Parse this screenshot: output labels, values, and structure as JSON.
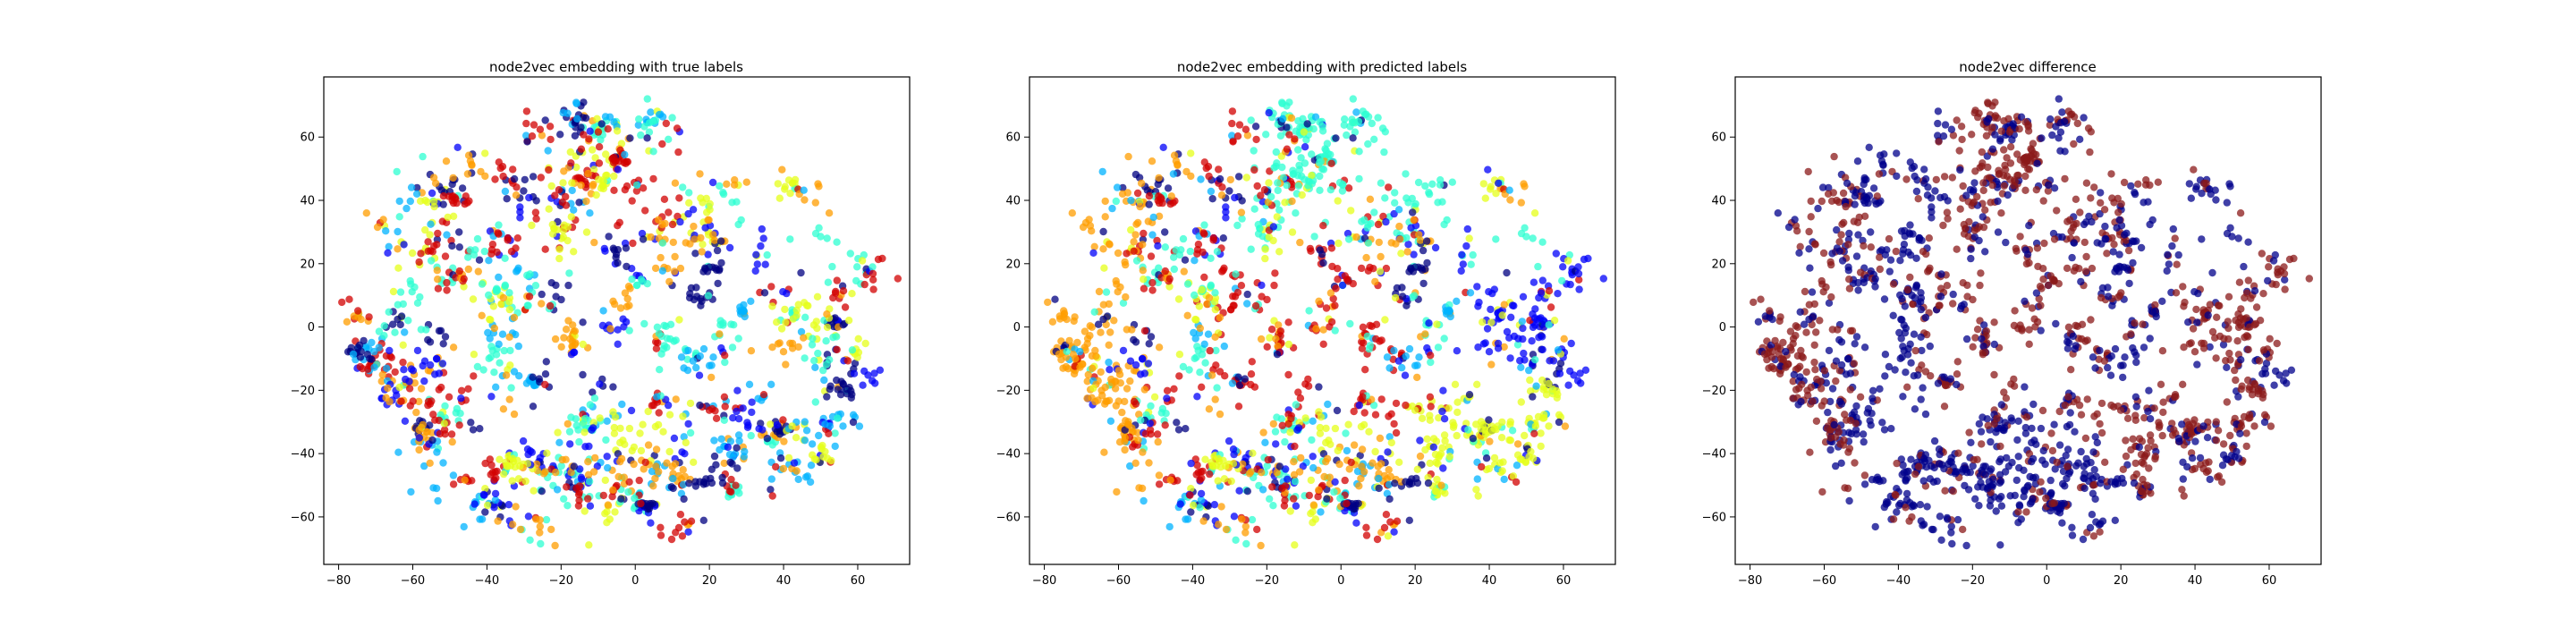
{
  "figure": {
    "background": "#ffffff",
    "axis_color": "#000000"
  },
  "chart_data": [
    {
      "type": "scatter",
      "title": "node2vec embedding with true labels",
      "xlabel": "",
      "ylabel": "",
      "xlim": [
        -84,
        74
      ],
      "ylim": [
        -75,
        79
      ],
      "xticks": [
        -80,
        -60,
        -40,
        -20,
        0,
        20,
        40,
        60
      ],
      "yticks": [
        -60,
        -40,
        -20,
        0,
        20,
        40,
        60
      ],
      "grid": false,
      "legend": "none",
      "colormap": "jet",
      "mode": "mixed",
      "marker_alpha": 0.75,
      "seed": 11
    },
    {
      "type": "scatter",
      "title": "node2vec embedding with predicted labels",
      "xlabel": "",
      "ylabel": "",
      "xlim": [
        -84,
        74
      ],
      "ylim": [
        -75,
        79
      ],
      "xticks": [
        -80,
        -60,
        -40,
        -20,
        0,
        20,
        40,
        60
      ],
      "yticks": [
        -60,
        -40,
        -20,
        0,
        20,
        40,
        60
      ],
      "grid": false,
      "legend": "none",
      "colormap": "jet",
      "mode": "clustered",
      "marker_alpha": 0.75,
      "seed": 11
    },
    {
      "type": "scatter",
      "title": "node2vec difference",
      "xlabel": "",
      "ylabel": "",
      "xlim": [
        -84,
        74
      ],
      "ylim": [
        -75,
        79
      ],
      "xticks": [
        -80,
        -60,
        -40,
        -20,
        0,
        20,
        40,
        60
      ],
      "yticks": [
        -60,
        -40,
        -20,
        0,
        20,
        40,
        60
      ],
      "grid": false,
      "legend": "none",
      "colormap": "binary",
      "colors": [
        "#00008b",
        "#8b1a1a"
      ],
      "mode": "difference",
      "marker_alpha": 0.75,
      "seed": 11
    }
  ]
}
